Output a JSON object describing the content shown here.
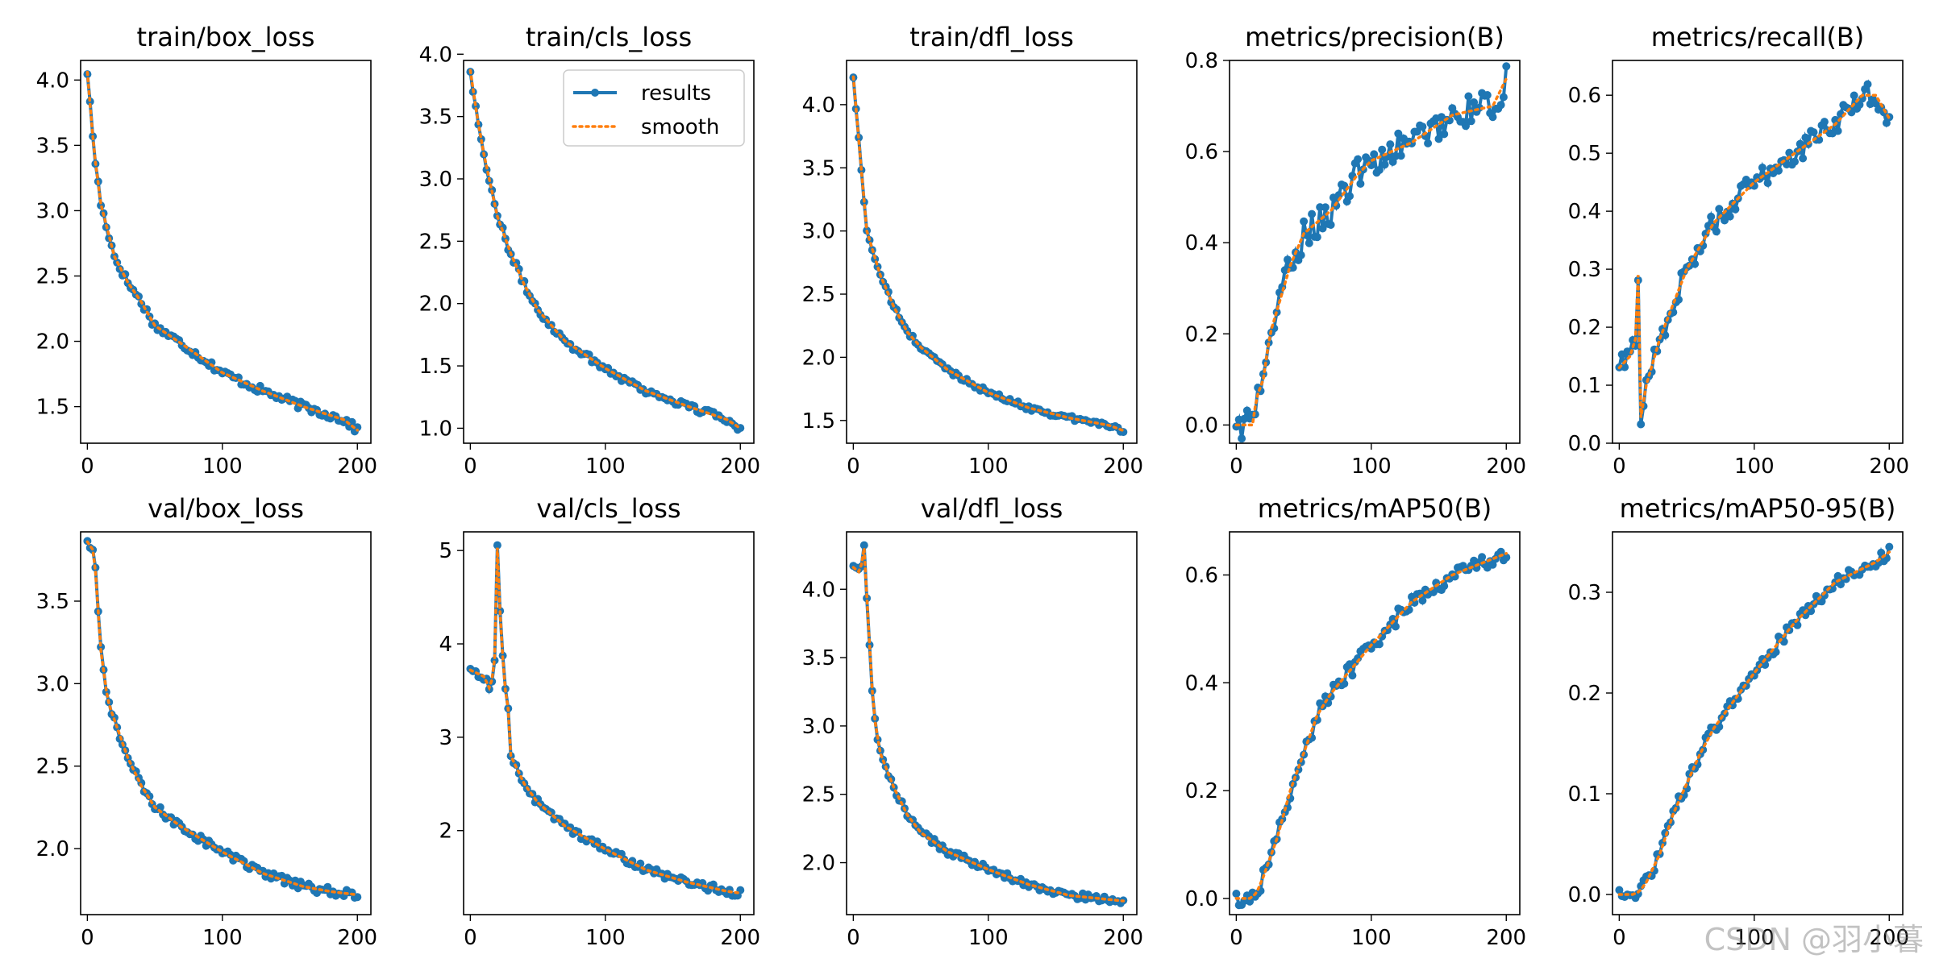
{
  "colors": {
    "results": "#1f77b4",
    "smooth": "#ff7f0e",
    "axis": "#000000"
  },
  "legend": {
    "results_label": "results",
    "smooth_label": "smooth",
    "placement": "upper-right",
    "panel": 1
  },
  "watermark": "CSDN @羽小暮",
  "chart_data": [
    {
      "type": "line",
      "title": "train/box_loss",
      "xlim": [
        -5,
        210
      ],
      "ylim": [
        1.22,
        4.15
      ],
      "xticks": [
        0,
        100,
        200
      ],
      "yticks": [
        1.5,
        2.0,
        2.5,
        3.0,
        3.5,
        4.0
      ],
      "x_end": 200,
      "anchors": [
        [
          0,
          4.06
        ],
        [
          5,
          3.45
        ],
        [
          10,
          3.05
        ],
        [
          20,
          2.65
        ],
        [
          30,
          2.45
        ],
        [
          40,
          2.3
        ],
        [
          50,
          2.12
        ],
        [
          70,
          1.98
        ],
        [
          100,
          1.76
        ],
        [
          130,
          1.62
        ],
        [
          160,
          1.5
        ],
        [
          190,
          1.4
        ],
        [
          200,
          1.32
        ]
      ],
      "noise": 0.03
    },
    {
      "type": "line",
      "title": "train/cls_loss",
      "xlim": [
        -5,
        210
      ],
      "ylim": [
        0.88,
        3.95
      ],
      "xticks": [
        0,
        100,
        200
      ],
      "yticks": [
        1.0,
        1.5,
        2.0,
        2.5,
        3.0,
        3.5,
        4.0
      ],
      "x_end": 200,
      "anchors": [
        [
          0,
          3.87
        ],
        [
          5,
          3.5
        ],
        [
          10,
          3.2
        ],
        [
          20,
          2.7
        ],
        [
          30,
          2.4
        ],
        [
          40,
          2.15
        ],
        [
          50,
          1.95
        ],
        [
          70,
          1.7
        ],
        [
          100,
          1.48
        ],
        [
          130,
          1.3
        ],
        [
          160,
          1.18
        ],
        [
          190,
          1.07
        ],
        [
          200,
          1.0
        ]
      ],
      "noise": 0.03
    },
    {
      "type": "line",
      "title": "train/dfl_loss",
      "xlim": [
        -5,
        210
      ],
      "ylim": [
        1.32,
        4.35
      ],
      "xticks": [
        0,
        100,
        200
      ],
      "yticks": [
        1.5,
        2.0,
        2.5,
        3.0,
        3.5,
        4.0
      ],
      "x_end": 200,
      "anchors": [
        [
          0,
          4.22
        ],
        [
          5,
          3.6
        ],
        [
          10,
          3.0
        ],
        [
          20,
          2.65
        ],
        [
          30,
          2.4
        ],
        [
          40,
          2.2
        ],
        [
          50,
          2.08
        ],
        [
          70,
          1.9
        ],
        [
          100,
          1.72
        ],
        [
          130,
          1.6
        ],
        [
          160,
          1.52
        ],
        [
          190,
          1.46
        ],
        [
          200,
          1.42
        ]
      ],
      "noise": 0.02
    },
    {
      "type": "line",
      "title": "metrics/precision(B)",
      "xlim": [
        -5,
        210
      ],
      "ylim": [
        -0.04,
        0.8
      ],
      "xticks": [
        0,
        100,
        200
      ],
      "yticks": [
        0.0,
        0.2,
        0.4,
        0.6,
        0.8
      ],
      "x_end": 200,
      "anchors": [
        [
          0,
          0.0
        ],
        [
          12,
          0.0
        ],
        [
          15,
          0.06
        ],
        [
          20,
          0.1
        ],
        [
          25,
          0.2
        ],
        [
          30,
          0.25
        ],
        [
          40,
          0.35
        ],
        [
          50,
          0.42
        ],
        [
          70,
          0.47
        ],
        [
          90,
          0.55
        ],
        [
          100,
          0.58
        ],
        [
          130,
          0.62
        ],
        [
          160,
          0.68
        ],
        [
          190,
          0.7
        ],
        [
          200,
          0.76
        ]
      ],
      "noise": 0.035
    },
    {
      "type": "line",
      "title": "metrics/recall(B)",
      "xlim": [
        -5,
        210
      ],
      "ylim": [
        0.0,
        0.66
      ],
      "xticks": [
        0,
        100,
        200
      ],
      "yticks": [
        0.0,
        0.1,
        0.2,
        0.3,
        0.4,
        0.5,
        0.6
      ],
      "x_end": 200,
      "anchors": [
        [
          0,
          0.13
        ],
        [
          8,
          0.15
        ],
        [
          12,
          0.18
        ],
        [
          14,
          0.29
        ],
        [
          15,
          0.03
        ],
        [
          20,
          0.1
        ],
        [
          30,
          0.18
        ],
        [
          40,
          0.24
        ],
        [
          50,
          0.3
        ],
        [
          70,
          0.38
        ],
        [
          100,
          0.45
        ],
        [
          130,
          0.5
        ],
        [
          160,
          0.55
        ],
        [
          180,
          0.6
        ],
        [
          190,
          0.6
        ],
        [
          200,
          0.56
        ]
      ],
      "noise": 0.02
    },
    {
      "type": "line",
      "title": "val/box_loss",
      "xlim": [
        -5,
        210
      ],
      "ylim": [
        1.6,
        3.92
      ],
      "xticks": [
        0,
        100,
        200
      ],
      "yticks": [
        2.0,
        2.5,
        3.0,
        3.5
      ],
      "x_end": 200,
      "anchors": [
        [
          0,
          3.86
        ],
        [
          5,
          3.8
        ],
        [
          10,
          3.2
        ],
        [
          15,
          2.9
        ],
        [
          20,
          2.78
        ],
        [
          30,
          2.55
        ],
        [
          40,
          2.38
        ],
        [
          50,
          2.25
        ],
        [
          70,
          2.13
        ],
        [
          100,
          1.98
        ],
        [
          130,
          1.85
        ],
        [
          160,
          1.77
        ],
        [
          180,
          1.74
        ],
        [
          200,
          1.72
        ]
      ],
      "noise": 0.025
    },
    {
      "type": "line",
      "title": "val/cls_loss",
      "xlim": [
        -5,
        210
      ],
      "ylim": [
        1.1,
        5.2
      ],
      "xticks": [
        0,
        100,
        200
      ],
      "yticks": [
        2,
        3,
        4,
        5
      ],
      "x_end": 200,
      "anchors": [
        [
          0,
          3.72
        ],
        [
          10,
          3.65
        ],
        [
          15,
          3.5
        ],
        [
          18,
          3.85
        ],
        [
          20,
          5.03
        ],
        [
          22,
          4.35
        ],
        [
          25,
          3.6
        ],
        [
          28,
          3.3
        ],
        [
          30,
          2.8
        ],
        [
          40,
          2.5
        ],
        [
          50,
          2.3
        ],
        [
          70,
          2.05
        ],
        [
          100,
          1.8
        ],
        [
          130,
          1.58
        ],
        [
          160,
          1.45
        ],
        [
          190,
          1.35
        ],
        [
          200,
          1.33
        ]
      ],
      "noise": 0.04
    },
    {
      "type": "line",
      "title": "val/dfl_loss",
      "xlim": [
        -5,
        210
      ],
      "ylim": [
        1.62,
        4.42
      ],
      "xticks": [
        0,
        100,
        200
      ],
      "yticks": [
        2.0,
        2.5,
        3.0,
        3.5,
        4.0
      ],
      "x_end": 200,
      "anchors": [
        [
          0,
          4.16
        ],
        [
          5,
          4.12
        ],
        [
          8,
          4.3
        ],
        [
          12,
          3.6
        ],
        [
          15,
          3.1
        ],
        [
          20,
          2.8
        ],
        [
          30,
          2.55
        ],
        [
          40,
          2.35
        ],
        [
          50,
          2.22
        ],
        [
          70,
          2.08
        ],
        [
          100,
          1.95
        ],
        [
          130,
          1.84
        ],
        [
          160,
          1.76
        ],
        [
          200,
          1.72
        ]
      ],
      "noise": 0.025
    },
    {
      "type": "line",
      "title": "metrics/mAP50(B)",
      "xlim": [
        -5,
        210
      ],
      "ylim": [
        -0.03,
        0.68
      ],
      "xticks": [
        0,
        100,
        200
      ],
      "yticks": [
        0.0,
        0.2,
        0.4,
        0.6
      ],
      "x_end": 200,
      "anchors": [
        [
          0,
          0.0
        ],
        [
          10,
          0.0
        ],
        [
          15,
          0.01
        ],
        [
          20,
          0.04
        ],
        [
          30,
          0.11
        ],
        [
          40,
          0.2
        ],
        [
          50,
          0.27
        ],
        [
          60,
          0.34
        ],
        [
          70,
          0.38
        ],
        [
          100,
          0.47
        ],
        [
          130,
          0.55
        ],
        [
          160,
          0.6
        ],
        [
          190,
          0.63
        ],
        [
          200,
          0.64
        ]
      ],
      "noise": 0.015
    },
    {
      "type": "line",
      "title": "metrics/mAP50-95(B)",
      "xlim": [
        -5,
        210
      ],
      "ylim": [
        -0.02,
        0.36
      ],
      "xticks": [
        0,
        100,
        200
      ],
      "yticks": [
        0.0,
        0.1,
        0.2,
        0.3
      ],
      "x_end": 200,
      "anchors": [
        [
          0,
          0.0
        ],
        [
          10,
          0.0
        ],
        [
          15,
          0.003
        ],
        [
          20,
          0.012
        ],
        [
          30,
          0.04
        ],
        [
          40,
          0.08
        ],
        [
          50,
          0.11
        ],
        [
          60,
          0.14
        ],
        [
          70,
          0.165
        ],
        [
          100,
          0.22
        ],
        [
          130,
          0.27
        ],
        [
          160,
          0.31
        ],
        [
          190,
          0.33
        ],
        [
          200,
          0.34
        ]
      ],
      "noise": 0.006
    }
  ]
}
